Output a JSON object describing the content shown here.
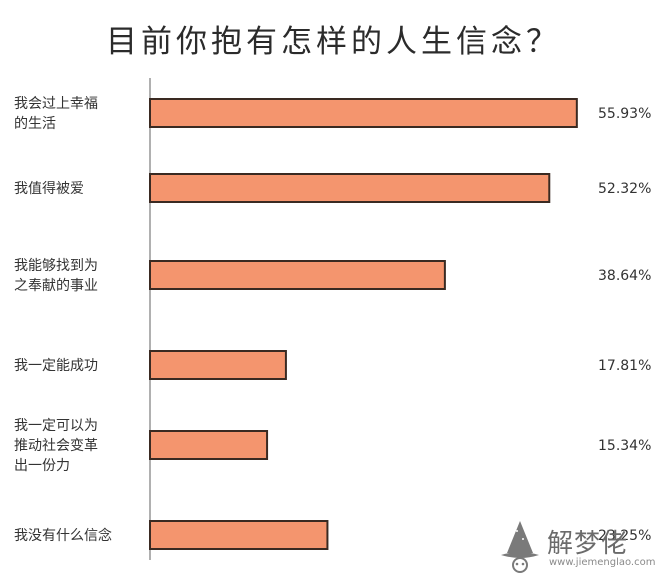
{
  "chart_data": {
    "type": "bar",
    "orientation": "horizontal",
    "title": "目前你抱有怎样的人生信念？",
    "categories": [
      [
        "我会过上幸福",
        "的生活"
      ],
      [
        "我值得被爱"
      ],
      [
        "我能够找到为",
        "之奉献的事业"
      ],
      [
        "我一定能成功"
      ],
      [
        "我一定可以为",
        "推动社会变革",
        "出一份力"
      ],
      [
        "我没有什么信念"
      ]
    ],
    "values": [
      55.93,
      52.32,
      38.64,
      17.81,
      15.34,
      23.25
    ],
    "value_labels": [
      "55.93%",
      "52.32%",
      "38.64%",
      "17.81%",
      "15.34%",
      "23.25%"
    ],
    "xlim": [
      0,
      57
    ],
    "bar_color": "#F4956E",
    "bar_stroke": "#3a2a22",
    "axis_color": "#b0b0b0"
  },
  "watermark": {
    "text": "解梦佬",
    "url": "www.jiemenglao.com"
  }
}
